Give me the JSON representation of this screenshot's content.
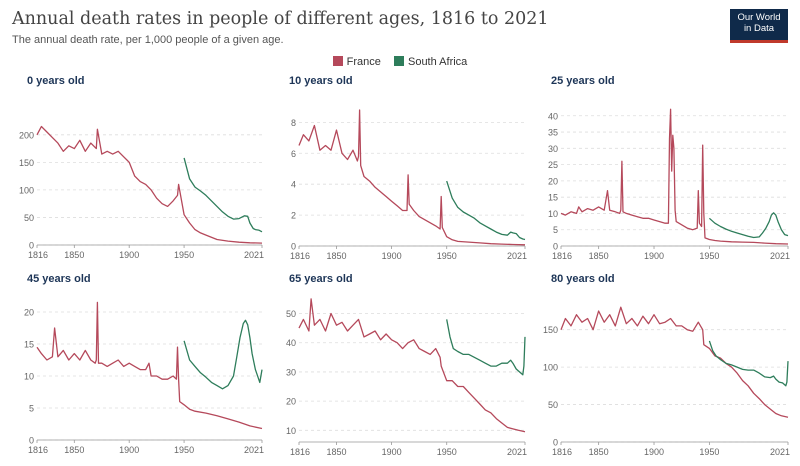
{
  "header": {
    "title": "Annual death rates in people of different ages, 1816 to 2021",
    "subtitle": "The annual death rate, per 1,000 people of a given age.",
    "logo_line1": "Our World",
    "logo_line2": "in Data"
  },
  "legend": [
    {
      "label": "France",
      "color": "#b5495b"
    },
    {
      "label": "South Africa",
      "color": "#2e7d5b"
    }
  ],
  "chart_data": [
    {
      "type": "line",
      "title": "0 years old",
      "x_ticks": [
        1816,
        1850,
        1900,
        1950,
        2021
      ],
      "y_ticks": [
        0,
        50,
        100,
        150,
        200
      ],
      "ylim": [
        0,
        245
      ],
      "series": [
        {
          "name": "France",
          "color": "#b5495b",
          "x": [
            1816,
            1820,
            1825,
            1830,
            1835,
            1840,
            1845,
            1850,
            1855,
            1860,
            1865,
            1870,
            1871,
            1875,
            1880,
            1885,
            1890,
            1895,
            1900,
            1905,
            1910,
            1915,
            1920,
            1925,
            1930,
            1935,
            1940,
            1944,
            1945,
            1950,
            1955,
            1960,
            1965,
            1970,
            1980,
            1990,
            2000,
            2010,
            2021
          ],
          "y": [
            200,
            215,
            205,
            195,
            185,
            170,
            180,
            175,
            190,
            170,
            185,
            175,
            210,
            165,
            170,
            165,
            170,
            160,
            150,
            125,
            115,
            110,
            100,
            85,
            75,
            70,
            80,
            90,
            110,
            55,
            40,
            28,
            22,
            18,
            10,
            7,
            5,
            4,
            3.5
          ]
        },
        {
          "name": "South Africa",
          "color": "#2e7d5b",
          "x": [
            1950,
            1955,
            1960,
            1965,
            1970,
            1975,
            1980,
            1985,
            1990,
            1995,
            2000,
            2005,
            2008,
            2010,
            2013,
            2015,
            2018,
            2021
          ],
          "y": [
            158,
            120,
            105,
            98,
            90,
            80,
            70,
            60,
            52,
            47,
            48,
            53,
            52,
            40,
            30,
            28,
            27,
            24
          ]
        }
      ]
    },
    {
      "type": "line",
      "title": "10 years old",
      "x_ticks": [
        1816,
        1850,
        1900,
        1950,
        2021
      ],
      "y_ticks": [
        0,
        2,
        4,
        6,
        8
      ],
      "ylim": [
        0,
        8.8
      ],
      "series": [
        {
          "name": "France",
          "color": "#b5495b",
          "x": [
            1816,
            1820,
            1825,
            1830,
            1835,
            1840,
            1845,
            1850,
            1855,
            1860,
            1865,
            1869,
            1870,
            1871,
            1872,
            1875,
            1880,
            1885,
            1890,
            1895,
            1900,
            1905,
            1910,
            1914,
            1915,
            1916,
            1920,
            1925,
            1930,
            1935,
            1940,
            1944,
            1945,
            1946,
            1950,
            1955,
            1960,
            1970,
            1980,
            1990,
            2000,
            2010,
            2021
          ],
          "y": [
            6.5,
            7.2,
            6.8,
            7.8,
            6.2,
            6.5,
            6.2,
            7.5,
            6.0,
            5.6,
            6.2,
            5.5,
            5.8,
            8.8,
            5.2,
            4.5,
            4.2,
            3.8,
            3.5,
            3.2,
            2.9,
            2.6,
            2.3,
            2.3,
            4.6,
            2.7,
            2.3,
            1.9,
            1.7,
            1.5,
            1.3,
            1.1,
            3.2,
            1.2,
            0.6,
            0.4,
            0.3,
            0.25,
            0.2,
            0.15,
            0.12,
            0.1,
            0.08
          ]
        },
        {
          "name": "South Africa",
          "color": "#2e7d5b",
          "x": [
            1950,
            1955,
            1960,
            1965,
            1970,
            1975,
            1980,
            1985,
            1990,
            1995,
            2000,
            2005,
            2008,
            2010,
            2013,
            2016,
            2019,
            2021
          ],
          "y": [
            4.2,
            3.1,
            2.5,
            2.2,
            2.0,
            1.8,
            1.5,
            1.3,
            1.1,
            0.9,
            0.75,
            0.7,
            0.9,
            0.85,
            0.8,
            0.55,
            0.45,
            0.42
          ]
        }
      ]
    },
    {
      "type": "line",
      "title": "25 years old",
      "x_ticks": [
        1816,
        1850,
        1900,
        1950,
        2021
      ],
      "y_ticks": [
        0,
        5,
        10,
        15,
        20,
        25,
        30,
        35,
        40
      ],
      "ylim": [
        0,
        43
      ],
      "series": [
        {
          "name": "France",
          "color": "#b5495b",
          "x": [
            1816,
            1820,
            1825,
            1830,
            1832,
            1835,
            1840,
            1845,
            1850,
            1855,
            1858,
            1860,
            1865,
            1869,
            1870,
            1871,
            1872,
            1875,
            1880,
            1885,
            1890,
            1895,
            1900,
            1905,
            1910,
            1913,
            1914,
            1915,
            1916,
            1917,
            1918,
            1919,
            1920,
            1925,
            1930,
            1935,
            1939,
            1940,
            1941,
            1943,
            1944,
            1945,
            1946,
            1950,
            1955,
            1960,
            1970,
            1980,
            1990,
            2000,
            2010,
            2021
          ],
          "y": [
            10,
            9.5,
            10.5,
            10,
            12,
            10.5,
            11.5,
            11,
            12,
            11,
            17,
            11,
            10.5,
            10,
            11,
            26,
            10.5,
            10,
            9.5,
            9,
            8.5,
            8.5,
            8,
            7.5,
            7,
            7,
            33,
            42,
            23,
            34,
            30,
            11,
            7.5,
            6.5,
            5.5,
            5,
            5.5,
            17,
            7,
            6,
            31,
            10,
            2.5,
            2,
            1.7,
            1.5,
            1.3,
            1.2,
            1.1,
            0.9,
            0.7,
            0.6
          ]
        },
        {
          "name": "South Africa",
          "color": "#2e7d5b",
          "x": [
            1950,
            1955,
            1960,
            1965,
            1970,
            1975,
            1980,
            1985,
            1990,
            1995,
            1998,
            2001,
            2004,
            2006,
            2008,
            2010,
            2012,
            2015,
            2018,
            2021
          ],
          "y": [
            8.5,
            7,
            6,
            5.2,
            4.5,
            4,
            3.5,
            3,
            2.6,
            2.8,
            4,
            5.5,
            7.5,
            9.5,
            10.2,
            9.5,
            7.5,
            5,
            3.5,
            3.2
          ]
        }
      ]
    },
    {
      "type": "line",
      "title": "45 years old",
      "x_ticks": [
        1816,
        1850,
        1900,
        1950,
        2021
      ],
      "y_ticks": [
        0,
        5,
        10,
        15,
        20
      ],
      "ylim": [
        0,
        22.5
      ],
      "series": [
        {
          "name": "France",
          "color": "#b5495b",
          "x": [
            1816,
            1820,
            1825,
            1830,
            1832,
            1835,
            1840,
            1845,
            1850,
            1855,
            1860,
            1865,
            1869,
            1870,
            1871,
            1872,
            1875,
            1880,
            1885,
            1890,
            1895,
            1900,
            1905,
            1910,
            1915,
            1918,
            1920,
            1925,
            1930,
            1935,
            1940,
            1943,
            1944,
            1945,
            1946,
            1950,
            1955,
            1960,
            1970,
            1980,
            1990,
            2000,
            2010,
            2021
          ],
          "y": [
            14.5,
            13.5,
            12.5,
            13,
            17.5,
            13,
            14,
            12.5,
            13.5,
            12.5,
            14,
            12.5,
            12,
            12.5,
            21.5,
            12,
            12,
            11.5,
            12,
            12.5,
            11.5,
            12,
            11.5,
            11,
            11,
            12,
            10,
            10,
            9.5,
            9.5,
            10,
            9.5,
            14.5,
            9.5,
            6,
            5.5,
            4.8,
            4.5,
            4.2,
            3.8,
            3.3,
            2.8,
            2.2,
            1.8
          ]
        },
        {
          "name": "South Africa",
          "color": "#2e7d5b",
          "x": [
            1950,
            1955,
            1960,
            1965,
            1970,
            1975,
            1980,
            1985,
            1990,
            1995,
            1998,
            2001,
            2004,
            2006,
            2008,
            2010,
            2012,
            2015,
            2018,
            2019,
            2021
          ],
          "y": [
            15.5,
            12.5,
            11.5,
            10.5,
            9.8,
            9,
            8.5,
            8,
            8.5,
            10,
            13,
            16,
            18.2,
            18.7,
            18,
            16,
            13.5,
            11,
            9.5,
            9,
            11
          ]
        }
      ]
    },
    {
      "type": "line",
      "title": "65 years old",
      "x_ticks": [
        1816,
        1850,
        1900,
        1950,
        2021
      ],
      "y_ticks": [
        10,
        20,
        30,
        40,
        50
      ],
      "ylim": [
        6,
        56
      ],
      "series": [
        {
          "name": "France",
          "color": "#b5495b",
          "x": [
            1816,
            1820,
            1825,
            1827,
            1830,
            1835,
            1840,
            1845,
            1850,
            1855,
            1860,
            1865,
            1870,
            1875,
            1880,
            1885,
            1890,
            1895,
            1900,
            1905,
            1910,
            1915,
            1920,
            1925,
            1930,
            1935,
            1940,
            1944,
            1945,
            1950,
            1955,
            1960,
            1965,
            1970,
            1975,
            1980,
            1985,
            1990,
            1995,
            2000,
            2005,
            2010,
            2015,
            2021
          ],
          "y": [
            45,
            48,
            44,
            55,
            46,
            48,
            44,
            50,
            46,
            47,
            44,
            46,
            48,
            42,
            43,
            44,
            41,
            43,
            41,
            40,
            38,
            40,
            41,
            38,
            37,
            36,
            38,
            35,
            32,
            27,
            27,
            25,
            25,
            23,
            21,
            19,
            17,
            16,
            14,
            12.5,
            11,
            10.5,
            10,
            9.5
          ]
        },
        {
          "name": "South Africa",
          "color": "#2e7d5b",
          "x": [
            1950,
            1953,
            1956,
            1960,
            1965,
            1970,
            1975,
            1980,
            1985,
            1990,
            1995,
            2000,
            2005,
            2008,
            2010,
            2013,
            2016,
            2019,
            2020,
            2021
          ],
          "y": [
            48,
            42,
            38,
            37,
            36,
            36,
            35,
            34,
            33,
            32,
            32,
            33,
            33,
            34,
            33,
            31,
            30,
            29,
            32,
            42
          ]
        }
      ]
    },
    {
      "type": "line",
      "title": "80 years old",
      "x_ticks": [
        1816,
        1850,
        1900,
        1950,
        2021
      ],
      "y_ticks": [
        0,
        50,
        100,
        150
      ],
      "ylim": [
        0,
        195
      ],
      "series": [
        {
          "name": "France",
          "color": "#b5495b",
          "x": [
            1816,
            1820,
            1825,
            1830,
            1835,
            1840,
            1845,
            1850,
            1855,
            1860,
            1865,
            1870,
            1875,
            1880,
            1885,
            1890,
            1895,
            1900,
            1905,
            1910,
            1915,
            1920,
            1925,
            1930,
            1935,
            1940,
            1944,
            1945,
            1950,
            1955,
            1960,
            1965,
            1970,
            1975,
            1980,
            1985,
            1990,
            1995,
            2000,
            2005,
            2010,
            2015,
            2021
          ],
          "y": [
            150,
            165,
            155,
            170,
            160,
            165,
            150,
            175,
            160,
            170,
            155,
            180,
            158,
            165,
            155,
            168,
            158,
            170,
            158,
            160,
            165,
            155,
            155,
            150,
            148,
            160,
            150,
            130,
            125,
            115,
            112,
            105,
            100,
            92,
            82,
            75,
            65,
            58,
            50,
            44,
            38,
            35,
            33
          ]
        },
        {
          "name": "South Africa",
          "color": "#2e7d5b",
          "x": [
            1950,
            1953,
            1956,
            1960,
            1965,
            1970,
            1975,
            1980,
            1985,
            1990,
            1995,
            2000,
            2005,
            2008,
            2010,
            2013,
            2016,
            2019,
            2020,
            2021
          ],
          "y": [
            135,
            122,
            115,
            110,
            105,
            103,
            100,
            97,
            96,
            96,
            92,
            87,
            86,
            88,
            84,
            80,
            79,
            75,
            80,
            108
          ]
        }
      ]
    }
  ]
}
